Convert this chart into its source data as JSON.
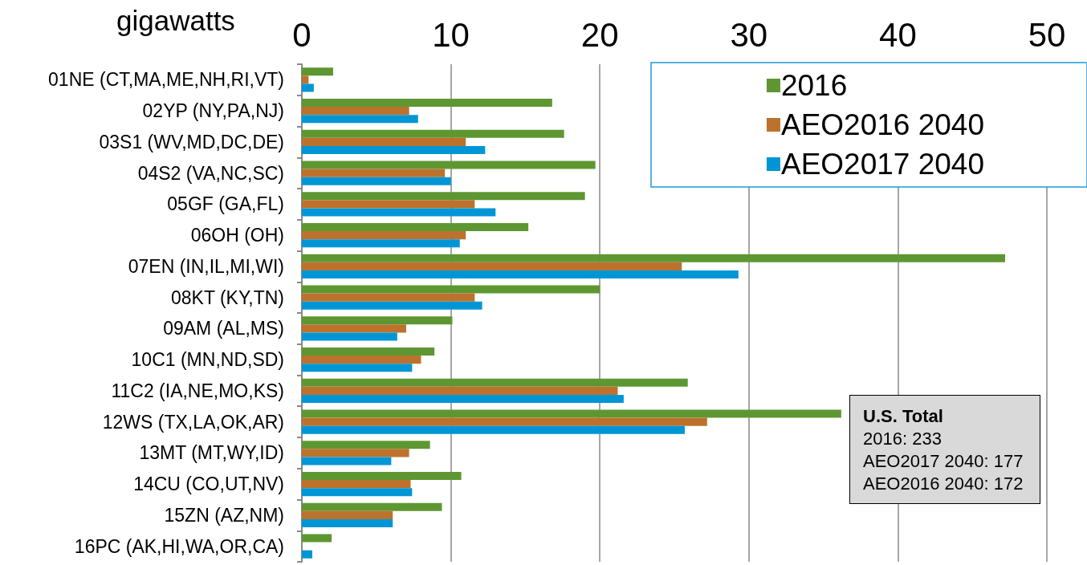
{
  "chart_data": {
    "type": "bar",
    "orientation": "horizontal",
    "xlabel": "gigawatts",
    "categories": [
      "01NE (CT,MA,ME,NH,RI,VT)",
      "02YP (NY,PA,NJ)",
      "03S1 (WV,MD,DC,DE)",
      "04S2 (VA,NC,SC)",
      "05GF (GA,FL)",
      "06OH (OH)",
      "07EN (IN,IL,MI,WI)",
      "08KT (KY,TN)",
      "09AM (AL,MS)",
      "10C1 (MN,ND,SD)",
      "11C2 (IA,NE,MO,KS)",
      "12WS (TX,LA,OK,AR)",
      "13MT (MT,WY,ID)",
      "14CU (CO,UT,NV)",
      "15ZN (AZ,NM)",
      "16PC (AK,HI,WA,OR,CA)"
    ],
    "series": [
      {
        "name": "2016",
        "color": "#5e9732",
        "values": [
          2.1,
          16.8,
          17.6,
          19.7,
          19.0,
          15.2,
          47.2,
          20.0,
          10.1,
          8.9,
          25.9,
          36.2,
          8.6,
          10.7,
          9.4,
          2.0
        ]
      },
      {
        "name": "AEO2016 2040",
        "color": "#bc722d",
        "values": [
          0.45,
          7.2,
          11.0,
          9.6,
          11.6,
          11.0,
          25.5,
          11.6,
          7.0,
          8.0,
          21.2,
          27.2,
          7.2,
          7.3,
          6.1,
          0
        ]
      },
      {
        "name": "AEO2017 2040",
        "color": "#0096d6",
        "values": [
          0.8,
          7.8,
          12.3,
          10.0,
          13.0,
          10.6,
          29.3,
          12.1,
          6.4,
          7.4,
          21.6,
          25.7,
          6.0,
          7.4,
          6.1,
          0.7
        ]
      }
    ],
    "xlim": [
      0,
      50
    ],
    "xticks": [
      0,
      10,
      20,
      30,
      40,
      50
    ],
    "grid": "x",
    "legend": "top right",
    "annotations": [
      "U.S. Total",
      "2016: 233",
      "AEO2017 2040: 177",
      "AEO2016 2040: 172"
    ]
  }
}
